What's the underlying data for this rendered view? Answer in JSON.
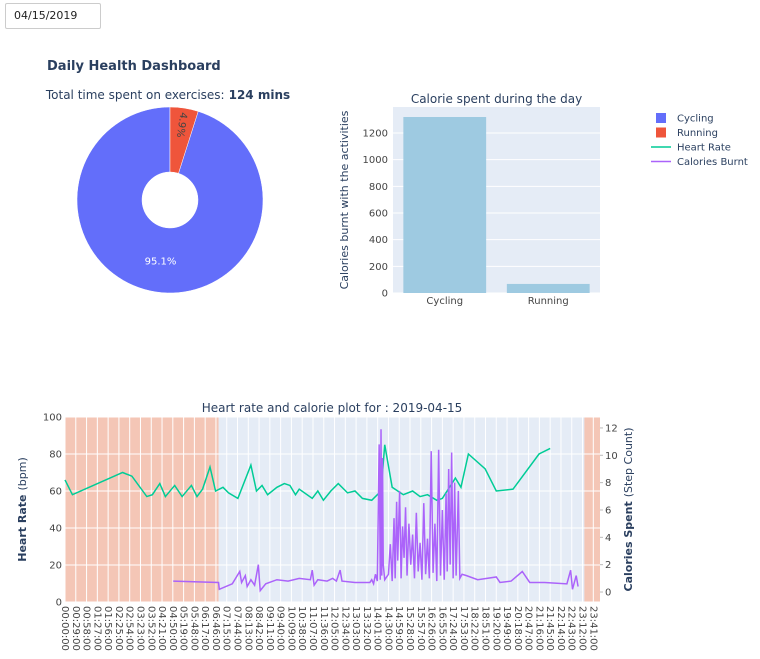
{
  "date_input": "04/15/2019",
  "dashboard_title": "Daily Health Dashboard",
  "chart_data": [
    {
      "type": "pie",
      "title": "Total time spent on exercises:",
      "title_bold": "124 mins",
      "categories": [
        "Cycling",
        "Running"
      ],
      "values": [
        95.1,
        4.9
      ],
      "value_labels": [
        "95.1%",
        "4.9%"
      ],
      "colors": [
        "#636efa",
        "#ef553b"
      ],
      "legend": "right"
    },
    {
      "type": "bar",
      "title": "Calorie spent during the day",
      "y_label": "Calories burnt with the activities",
      "categories": [
        "Cycling",
        "Running"
      ],
      "values": [
        1320,
        68
      ],
      "color": "#9ecae1",
      "ylim": [
        0,
        1395
      ],
      "yticks": [
        0,
        200,
        400,
        600,
        800,
        1000,
        1200
      ],
      "grid": true
    },
    {
      "type": "line",
      "title": "Heart rate and calorie plot for : 2019-04-15",
      "y_label": "Heart Rate",
      "y_label_unit": "(bpm)",
      "y2_label": "Calories Spent",
      "y2_label_unit": "(Step Count)",
      "xlim": [
        "00:00:00",
        "23:59:00"
      ],
      "xticks": [
        "00:00:00",
        "00:29:00",
        "00:58:00",
        "01:27:00",
        "01:56:00",
        "02:25:00",
        "02:54:00",
        "03:23:00",
        "03:52:00",
        "04:21:00",
        "04:50:00",
        "05:19:00",
        "05:48:00",
        "06:17:00",
        "06:46:00",
        "07:15:00",
        "07:44:00",
        "08:13:00",
        "08:42:00",
        "09:11:00",
        "09:40:00",
        "10:09:00",
        "10:38:00",
        "11:07:00",
        "11:36:00",
        "12:05:00",
        "12:34:00",
        "13:03:00",
        "13:32:00",
        "14:01:00",
        "14:30:00",
        "14:59:00",
        "15:28:00",
        "15:57:00",
        "16:26:00",
        "16:55:00",
        "17:24:00",
        "17:53:00",
        "18:22:00",
        "18:51:00",
        "19:20:00",
        "19:49:00",
        "20:18:00",
        "20:47:00",
        "21:16:00",
        "21:45:00",
        "22:14:00",
        "22:43:00",
        "23:12:00",
        "23:41:00"
      ],
      "ylim": [
        0,
        100
      ],
      "yticks": [
        0,
        20,
        40,
        60,
        80,
        100
      ],
      "y2lim": [
        -0.73,
        12.8
      ],
      "y2ticks": [
        0,
        2,
        4,
        6,
        8,
        10,
        12
      ],
      "shaded_regions": [
        [
          "00:00:00",
          "06:53:00"
        ],
        [
          "23:17:00",
          "23:59:00"
        ]
      ],
      "shade_color": "#f4c6b6",
      "grid": true,
      "series": [
        {
          "name": "Heart Rate",
          "color": "#00cc96",
          "x": [
            "00:00:00",
            "00:20:00",
            "02:35:00",
            "03:00:00",
            "03:40:00",
            "03:55:00",
            "04:15:00",
            "04:30:00",
            "04:55:00",
            "05:15:00",
            "05:40:00",
            "05:55:00",
            "06:10:00",
            "06:30:00",
            "06:45:00",
            "07:05:00",
            "07:20:00",
            "07:45:00",
            "08:20:00",
            "08:35:00",
            "08:50:00",
            "09:05:00",
            "09:30:00",
            "09:50:00",
            "10:05:00",
            "10:20:00",
            "10:30:00",
            "11:05:00",
            "11:20:00",
            "11:35:00",
            "11:55:00",
            "12:15:00",
            "12:40:00",
            "13:00:00",
            "13:20:00",
            "13:45:00",
            "14:10:00",
            "14:20:00",
            "14:40:00",
            "15:10:00",
            "15:35:00",
            "15:55:00",
            "16:15:00",
            "16:40:00",
            "16:55:00",
            "17:30:00",
            "17:45:00",
            "18:05:00",
            "18:50:00",
            "19:20:00",
            "20:05:00",
            "21:15:00",
            "21:45:00"
          ],
          "values": [
            66,
            58,
            70,
            68,
            57,
            58,
            64,
            57,
            63,
            57,
            63,
            57,
            61,
            73,
            60,
            62,
            59,
            56,
            74,
            60,
            63,
            58,
            62,
            64,
            63,
            58,
            61,
            56,
            60,
            55,
            60,
            64,
            59,
            60,
            56,
            55,
            60,
            85,
            62,
            58,
            60,
            57,
            58,
            55,
            56,
            67,
            62,
            80,
            72,
            60,
            61,
            80,
            83
          ]
        },
        {
          "name": "Calories Burnt",
          "color": "#ab63fa",
          "axis": "y2",
          "x": [
            "04:51:00",
            "06:53:00",
            "06:55:00",
            "07:30:00",
            "07:50:00",
            "07:55:00",
            "08:05:00",
            "08:10:00",
            "08:20:00",
            "08:30:00",
            "08:40:00",
            "08:45:00",
            "09:00:00",
            "09:30:00",
            "10:00:00",
            "10:30:00",
            "11:00:00",
            "11:05:00",
            "11:10:00",
            "11:20:00",
            "11:45:00",
            "12:00:00",
            "12:10:00",
            "12:20:00",
            "12:25:00",
            "13:00:00",
            "13:40:00",
            "13:45:00",
            "13:50:00",
            "13:55:00",
            "14:00:00",
            "14:05:00",
            "14:08:00",
            "14:10:00",
            "14:12:00",
            "14:14:00",
            "14:16:00",
            "14:20:00",
            "14:30:00",
            "14:35:00",
            "14:40:00",
            "14:45:00",
            "14:48:00",
            "14:52:00",
            "14:55:00",
            "15:00:00",
            "15:04:00",
            "15:08:00",
            "15:12:00",
            "15:16:00",
            "15:20:00",
            "15:25:00",
            "15:30:00",
            "15:35:00",
            "15:40:00",
            "15:45:00",
            "15:50:00",
            "15:55:00",
            "16:00:00",
            "16:05:00",
            "16:10:00",
            "16:15:00",
            "16:20:00",
            "16:25:00",
            "16:30:00",
            "16:35:00",
            "16:40:00",
            "16:45:00",
            "16:50:00",
            "16:55:00",
            "17:00:00",
            "17:05:00",
            "17:08:00",
            "17:12:00",
            "17:16:00",
            "17:20:00",
            "17:24:00",
            "17:28:00",
            "17:32:00",
            "17:38:00",
            "17:42:00",
            "17:48:00",
            "18:00:00",
            "18:30:00",
            "19:20:00",
            "19:30:00",
            "20:00:00",
            "20:30:00",
            "20:50:00",
            "21:30:00",
            "22:30:00",
            "22:40:00",
            "22:45:00",
            "22:55:00",
            "23:00:00"
          ],
          "values": [
            0.8,
            0.7,
            0.2,
            0.6,
            1.5,
            0.7,
            1.2,
            0.4,
            0.9,
            0.5,
            2.0,
            0.1,
            0.6,
            0.9,
            0.8,
            1.0,
            0.9,
            1.6,
            0.5,
            0.9,
            0.8,
            1.0,
            0.8,
            1.6,
            0.8,
            0.7,
            0.7,
            0.9,
            0.6,
            1.3,
            0.8,
            10.8,
            0.9,
            11.9,
            1.2,
            9.8,
            2.0,
            0.9,
            1.3,
            3.5,
            0.8,
            5.4,
            1.0,
            6.6,
            2.3,
            7.4,
            1.0,
            4.8,
            2.5,
            6.2,
            1.2,
            5.0,
            2.0,
            4.2,
            1.0,
            5.8,
            1.5,
            3.6,
            0.9,
            6.5,
            1.3,
            3.9,
            1.0,
            10.3,
            1.4,
            5.0,
            0.8,
            10.4,
            1.2,
            6.0,
            0.9,
            7.2,
            1.5,
            9.0,
            2.0,
            10.2,
            1.0,
            8.0,
            1.2,
            7.4,
            1.0,
            1.3,
            1.2,
            0.9,
            1.1,
            0.7,
            0.8,
            1.5,
            0.7,
            0.7,
            0.6,
            1.6,
            0.2,
            1.2,
            0.4
          ]
        }
      ]
    }
  ]
}
